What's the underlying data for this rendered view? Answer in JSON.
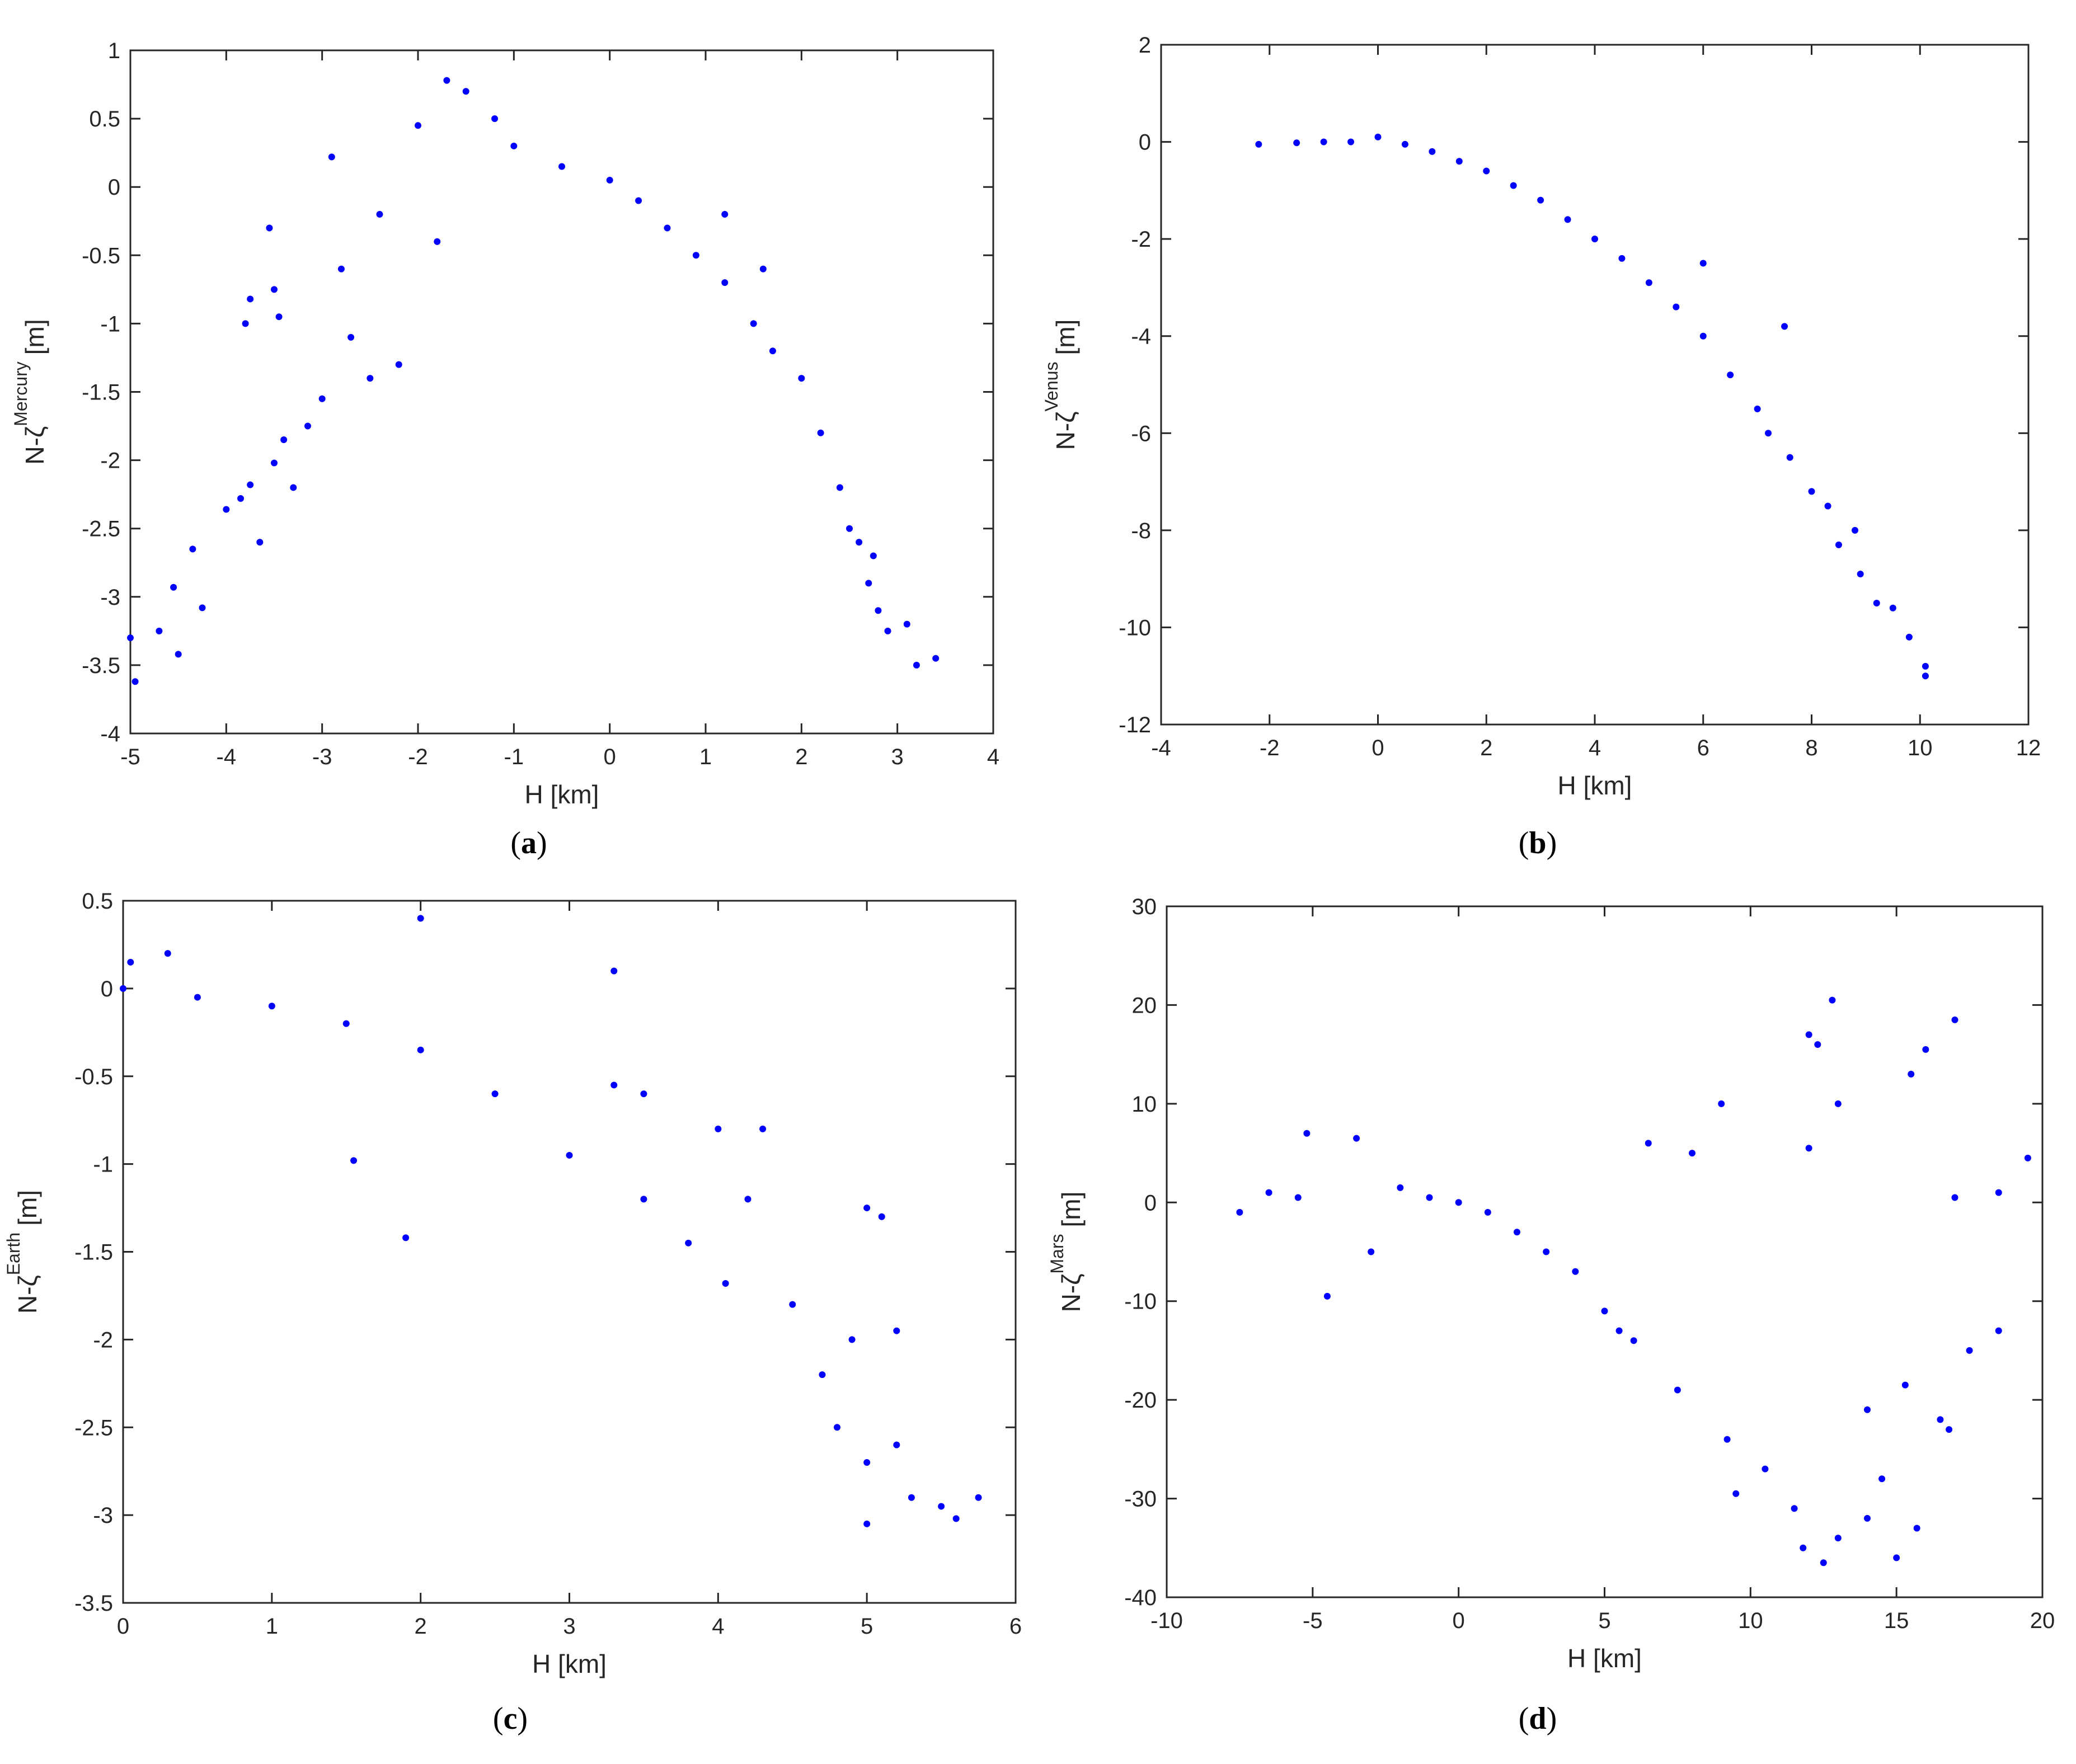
{
  "colors": {
    "marker": "#0000ff",
    "axis": "#262626",
    "background": "#ffffff"
  },
  "panels": [
    {
      "label_open": "(",
      "label_letter": "a",
      "label_close": ")"
    },
    {
      "label_open": "(",
      "label_letter": "b",
      "label_close": ")"
    },
    {
      "label_open": "(",
      "label_letter": "c",
      "label_close": ")"
    },
    {
      "label_open": "(",
      "label_letter": "d",
      "label_close": ")"
    }
  ],
  "chart_data": [
    {
      "type": "scatter",
      "xlabel": "H [km]",
      "ylabel_main": "N-ζ",
      "ylabel_sup": "Mercury",
      "ylabel_unit": "[m]",
      "xlim": [
        -5,
        4
      ],
      "ylim": [
        -4,
        1
      ],
      "xticks": [
        -5,
        -4,
        -3,
        -2,
        -1,
        0,
        1,
        2,
        3,
        4
      ],
      "xtick_labels": [
        "-5",
        "-4",
        "-3",
        "-2",
        "-1",
        "0",
        "1",
        "2",
        "3",
        "4"
      ],
      "yticks": [
        -4,
        -3.5,
        -3,
        -2.5,
        -2,
        -1.5,
        -1,
        -0.5,
        0,
        0.5,
        1
      ],
      "ytick_labels": [
        "-4",
        "-3.5",
        "-3",
        "-2.5",
        "-2",
        "-1.5",
        "-1",
        "-0.5",
        "0",
        "0.5",
        "1"
      ],
      "grid": false,
      "points": [
        [
          -5,
          -3.3
        ],
        [
          -4.95,
          -3.62
        ],
        [
          -4.7,
          -3.25
        ],
        [
          -4.5,
          -3.42
        ],
        [
          -4.55,
          -2.93
        ],
        [
          -4.35,
          -2.65
        ],
        [
          -4.25,
          -3.08
        ],
        [
          -4.0,
          -2.36
        ],
        [
          -3.85,
          -2.28
        ],
        [
          -3.75,
          -2.18
        ],
        [
          -3.65,
          -2.6
        ],
        [
          -3.5,
          -2.02
        ],
        [
          -3.4,
          -1.85
        ],
        [
          -3.3,
          -2.2
        ],
        [
          -3.15,
          -1.75
        ],
        [
          -3.0,
          -1.55
        ],
        [
          -3.8,
          -1.0
        ],
        [
          -3.75,
          -0.82
        ],
        [
          -3.55,
          -0.3
        ],
        [
          -3.5,
          -0.75
        ],
        [
          -3.45,
          -0.95
        ],
        [
          -2.9,
          0.22
        ],
        [
          -2.8,
          -0.6
        ],
        [
          -2.7,
          -1.1
        ],
        [
          -2.5,
          -1.4
        ],
        [
          -2.4,
          -0.2
        ],
        [
          -2.2,
          -1.3
        ],
        [
          -2.0,
          0.45
        ],
        [
          -1.8,
          -0.4
        ],
        [
          -1.7,
          0.78
        ],
        [
          -1.5,
          0.7
        ],
        [
          -1.2,
          0.5
        ],
        [
          -1.0,
          0.3
        ],
        [
          -0.5,
          0.15
        ],
        [
          0.0,
          0.05
        ],
        [
          0.3,
          -0.1
        ],
        [
          0.6,
          -0.3
        ],
        [
          0.9,
          -0.5
        ],
        [
          1.2,
          -0.7
        ],
        [
          1.5,
          -1.0
        ],
        [
          1.7,
          -1.2
        ],
        [
          2.0,
          -1.4
        ],
        [
          2.2,
          -1.8
        ],
        [
          2.4,
          -2.2
        ],
        [
          2.6,
          -2.6
        ],
        [
          2.7,
          -2.9
        ],
        [
          2.8,
          -3.1
        ],
        [
          2.9,
          -3.25
        ],
        [
          3.1,
          -3.2
        ],
        [
          3.2,
          -3.5
        ],
        [
          3.4,
          -3.45
        ],
        [
          2.75,
          -2.7
        ],
        [
          2.5,
          -2.5
        ],
        [
          1.6,
          -0.6
        ],
        [
          1.2,
          -0.2
        ]
      ]
    },
    {
      "type": "scatter",
      "xlabel": "H [km]",
      "ylabel_main": "N-ζ",
      "ylabel_sup": "Venus",
      "ylabel_unit": "[m]",
      "xlim": [
        -4,
        12
      ],
      "ylim": [
        -12,
        2
      ],
      "xticks": [
        -4,
        -2,
        0,
        2,
        4,
        6,
        8,
        10,
        12
      ],
      "xtick_labels": [
        "-4",
        "-2",
        "0",
        "2",
        "4",
        "6",
        "8",
        "10",
        "12"
      ],
      "yticks": [
        -12,
        -10,
        -8,
        -6,
        -4,
        -2,
        0,
        2
      ],
      "ytick_labels": [
        "-12",
        "-10",
        "-8",
        "-6",
        "-4",
        "-2",
        "0",
        "2"
      ],
      "grid": false,
      "points": [
        [
          -2.2,
          -0.05
        ],
        [
          -1.5,
          -0.02
        ],
        [
          -1.0,
          0.0
        ],
        [
          -0.5,
          0.0
        ],
        [
          0.0,
          0.1
        ],
        [
          0.5,
          -0.05
        ],
        [
          1.0,
          -0.2
        ],
        [
          1.5,
          -0.4
        ],
        [
          2.0,
          -0.6
        ],
        [
          2.5,
          -0.9
        ],
        [
          3.0,
          -1.2
        ],
        [
          3.5,
          -1.6
        ],
        [
          4.0,
          -2.0
        ],
        [
          4.5,
          -2.4
        ],
        [
          5.0,
          -2.9
        ],
        [
          5.5,
          -3.4
        ],
        [
          6.0,
          -4.0
        ],
        [
          6.0,
          -2.5
        ],
        [
          6.5,
          -4.8
        ],
        [
          7.0,
          -5.5
        ],
        [
          7.5,
          -3.8
        ],
        [
          7.2,
          -6.0
        ],
        [
          7.6,
          -6.5
        ],
        [
          8.0,
          -7.2
        ],
        [
          8.3,
          -7.5
        ],
        [
          8.5,
          -8.3
        ],
        [
          8.8,
          -8.0
        ],
        [
          8.9,
          -8.9
        ],
        [
          9.2,
          -9.5
        ],
        [
          9.5,
          -9.6
        ],
        [
          9.8,
          -10.2
        ],
        [
          10.1,
          -11.0
        ],
        [
          10.1,
          -10.8
        ]
      ]
    },
    {
      "type": "scatter",
      "xlabel": "H [km]",
      "ylabel_main": "N-ζ",
      "ylabel_sup": "Earth",
      "ylabel_unit": "[m]",
      "xlim": [
        0,
        6
      ],
      "ylim": [
        -3.5,
        0.5
      ],
      "xticks": [
        0,
        1,
        2,
        3,
        4,
        5,
        6
      ],
      "xtick_labels": [
        "0",
        "1",
        "2",
        "3",
        "4",
        "5",
        "6"
      ],
      "yticks": [
        -3.5,
        -3,
        -2.5,
        -2,
        -1.5,
        -1,
        -0.5,
        0,
        0.5
      ],
      "ytick_labels": [
        "-3.5",
        "-3",
        "-2.5",
        "-2",
        "-1.5",
        "-1",
        "-0.5",
        "0",
        "0.5"
      ],
      "grid": false,
      "points": [
        [
          0.0,
          0.0
        ],
        [
          0.05,
          0.15
        ],
        [
          0.3,
          0.2
        ],
        [
          0.5,
          -0.05
        ],
        [
          1.0,
          -0.1
        ],
        [
          1.5,
          -0.2
        ],
        [
          2.0,
          0.4
        ],
        [
          2.0,
          -0.35
        ],
        [
          2.5,
          -0.6
        ],
        [
          3.0,
          -0.95
        ],
        [
          3.3,
          0.1
        ],
        [
          3.5,
          -1.2
        ],
        [
          3.8,
          -1.45
        ],
        [
          4.05,
          -1.68
        ],
        [
          1.55,
          -0.98
        ],
        [
          1.9,
          -1.42
        ],
        [
          3.3,
          -0.55
        ],
        [
          3.5,
          -0.6
        ],
        [
          4.0,
          -0.8
        ],
        [
          4.3,
          -0.8
        ],
        [
          4.2,
          -1.2
        ],
        [
          4.5,
          -1.8
        ],
        [
          4.7,
          -2.2
        ],
        [
          4.8,
          -2.5
        ],
        [
          5.0,
          -2.7
        ],
        [
          5.0,
          -1.25
        ],
        [
          5.1,
          -1.3
        ],
        [
          5.2,
          -2.6
        ],
        [
          5.3,
          -2.9
        ],
        [
          5.5,
          -2.95
        ],
        [
          5.6,
          -3.02
        ],
        [
          5.75,
          -2.9
        ],
        [
          5.0,
          -3.05
        ],
        [
          4.9,
          -2.0
        ],
        [
          5.2,
          -1.95
        ]
      ]
    },
    {
      "type": "scatter",
      "xlabel": "H [km]",
      "ylabel_main": "N-ζ",
      "ylabel_sup": "Mars",
      "ylabel_unit": "[m]",
      "xlim": [
        -10,
        20
      ],
      "ylim": [
        -40,
        30
      ],
      "xticks": [
        -10,
        -5,
        0,
        5,
        10,
        15,
        20
      ],
      "xtick_labels": [
        "-10",
        "-5",
        "0",
        "5",
        "10",
        "15",
        "20"
      ],
      "yticks": [
        -40,
        -30,
        -20,
        -10,
        0,
        10,
        20,
        30
      ],
      "ytick_labels": [
        "-40",
        "-30",
        "-20",
        "-10",
        "0",
        "10",
        "20",
        "30"
      ],
      "grid": false,
      "points": [
        [
          -7.5,
          -1.0
        ],
        [
          -6.5,
          1.0
        ],
        [
          -5.5,
          0.5
        ],
        [
          -5.2,
          7.0
        ],
        [
          -3.5,
          6.5
        ],
        [
          -4.5,
          -9.5
        ],
        [
          -3.0,
          -5.0
        ],
        [
          -2.0,
          1.5
        ],
        [
          -1.0,
          0.5
        ],
        [
          0.0,
          0.0
        ],
        [
          1.0,
          -1.0
        ],
        [
          2.0,
          -3.0
        ],
        [
          3.0,
          -5.0
        ],
        [
          4.0,
          -7.0
        ],
        [
          5.0,
          -11.0
        ],
        [
          5.5,
          -13.0
        ],
        [
          6.0,
          -14.0
        ],
        [
          6.5,
          6.0
        ],
        [
          7.5,
          -19.0
        ],
        [
          8.0,
          5.0
        ],
        [
          9.0,
          10.0
        ],
        [
          9.2,
          -24.0
        ],
        [
          9.5,
          -29.5
        ],
        [
          10.5,
          -27.0
        ],
        [
          11.5,
          -31.0
        ],
        [
          11.8,
          -35.0
        ],
        [
          12.0,
          17.0
        ],
        [
          12.0,
          5.5
        ],
        [
          12.3,
          16.0
        ],
        [
          12.5,
          -36.5
        ],
        [
          12.8,
          20.5
        ],
        [
          13.0,
          10.0
        ],
        [
          13.0,
          -34.0
        ],
        [
          14.0,
          -21.0
        ],
        [
          14.0,
          -32.0
        ],
        [
          14.5,
          -28.0
        ],
        [
          15.0,
          -36.0
        ],
        [
          15.3,
          -18.5
        ],
        [
          15.5,
          13.0
        ],
        [
          15.7,
          -33.0
        ],
        [
          16.0,
          15.5
        ],
        [
          16.5,
          -22.0
        ],
        [
          16.8,
          -23.0
        ],
        [
          17.0,
          18.5
        ],
        [
          17.0,
          0.5
        ],
        [
          17.5,
          -15.0
        ],
        [
          18.5,
          -13.0
        ],
        [
          18.5,
          1.0
        ],
        [
          19.5,
          4.5
        ]
      ]
    }
  ]
}
